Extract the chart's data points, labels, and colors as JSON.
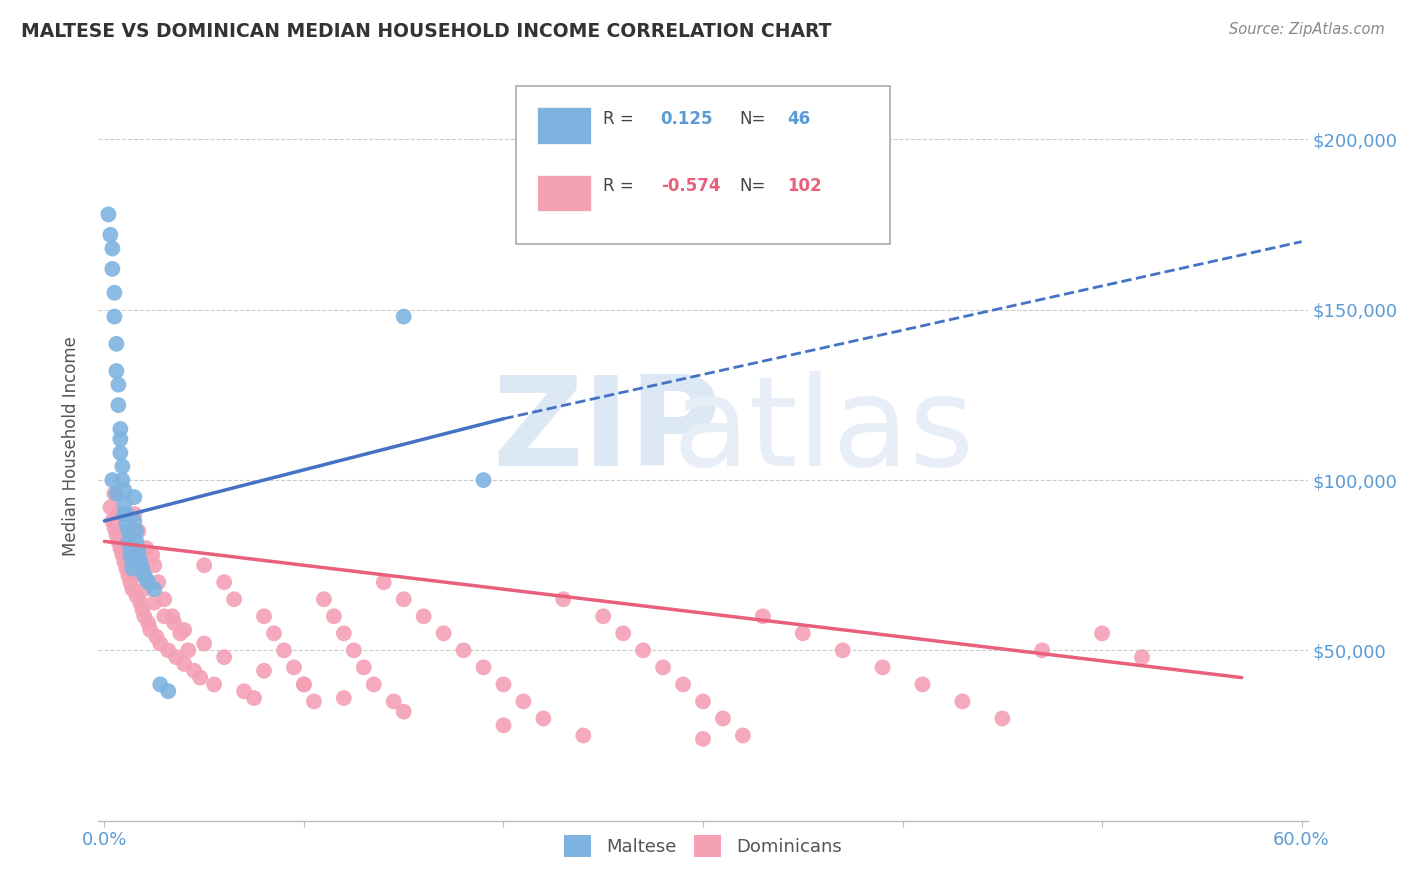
{
  "title": "MALTESE VS DOMINICAN MEDIAN HOUSEHOLD INCOME CORRELATION CHART",
  "source": "Source: ZipAtlas.com",
  "ylabel": "Median Household Income",
  "xlim": [
    -0.003,
    0.603
  ],
  "ylim": [
    0,
    220000
  ],
  "xticks": [
    0.0,
    0.6
  ],
  "xticklabels": [
    "0.0%",
    "60.0%"
  ],
  "yticks": [
    50000,
    100000,
    150000,
    200000
  ],
  "yticklabels": [
    "$50,000",
    "$100,000",
    "$150,000",
    "$200,000"
  ],
  "maltese_R": 0.125,
  "maltese_N": 46,
  "dominican_R": -0.574,
  "dominican_N": 102,
  "maltese_color": "#7eb3e0",
  "dominican_color": "#f4a0b5",
  "maltese_line_color": "#4472c4",
  "dominican_line_color": "#e8607a",
  "maltese_x": [
    0.002,
    0.003,
    0.004,
    0.004,
    0.005,
    0.005,
    0.006,
    0.006,
    0.007,
    0.007,
    0.008,
    0.008,
    0.009,
    0.009,
    0.01,
    0.01,
    0.011,
    0.011,
    0.012,
    0.012,
    0.013,
    0.013,
    0.014,
    0.014,
    0.015,
    0.015,
    0.016,
    0.016,
    0.017,
    0.017,
    0.018,
    0.018,
    0.019,
    0.019,
    0.02,
    0.021,
    0.022,
    0.025,
    0.028,
    0.032,
    0.004,
    0.006,
    0.008,
    0.15,
    0.19,
    0.01
  ],
  "maltese_y": [
    178000,
    172000,
    168000,
    162000,
    155000,
    148000,
    140000,
    132000,
    128000,
    122000,
    115000,
    108000,
    104000,
    100000,
    97000,
    93000,
    90000,
    87000,
    85000,
    82000,
    80000,
    78000,
    76000,
    74000,
    95000,
    88000,
    85000,
    82000,
    80000,
    78000,
    76000,
    75000,
    74000,
    73000,
    72000,
    71000,
    70000,
    68000,
    40000,
    38000,
    100000,
    96000,
    112000,
    148000,
    100000,
    90000
  ],
  "dominican_x": [
    0.003,
    0.004,
    0.005,
    0.006,
    0.007,
    0.008,
    0.009,
    0.01,
    0.011,
    0.012,
    0.013,
    0.014,
    0.015,
    0.016,
    0.017,
    0.018,
    0.019,
    0.02,
    0.021,
    0.022,
    0.023,
    0.024,
    0.025,
    0.026,
    0.027,
    0.028,
    0.03,
    0.032,
    0.034,
    0.036,
    0.038,
    0.04,
    0.042,
    0.045,
    0.048,
    0.05,
    0.055,
    0.06,
    0.065,
    0.07,
    0.075,
    0.08,
    0.085,
    0.09,
    0.095,
    0.1,
    0.105,
    0.11,
    0.115,
    0.12,
    0.125,
    0.13,
    0.135,
    0.14,
    0.145,
    0.15,
    0.16,
    0.17,
    0.18,
    0.19,
    0.2,
    0.21,
    0.22,
    0.23,
    0.24,
    0.25,
    0.26,
    0.27,
    0.28,
    0.29,
    0.3,
    0.31,
    0.32,
    0.33,
    0.35,
    0.37,
    0.39,
    0.41,
    0.43,
    0.45,
    0.005,
    0.007,
    0.009,
    0.011,
    0.013,
    0.015,
    0.02,
    0.025,
    0.03,
    0.035,
    0.04,
    0.05,
    0.06,
    0.08,
    0.1,
    0.12,
    0.15,
    0.2,
    0.3,
    0.5,
    0.47,
    0.52
  ],
  "dominican_y": [
    92000,
    88000,
    86000,
    84000,
    82000,
    80000,
    78000,
    76000,
    74000,
    72000,
    70000,
    68000,
    90000,
    66000,
    85000,
    64000,
    62000,
    60000,
    80000,
    58000,
    56000,
    78000,
    75000,
    54000,
    70000,
    52000,
    65000,
    50000,
    60000,
    48000,
    55000,
    46000,
    50000,
    44000,
    42000,
    75000,
    40000,
    70000,
    65000,
    38000,
    36000,
    60000,
    55000,
    50000,
    45000,
    40000,
    35000,
    65000,
    60000,
    55000,
    50000,
    45000,
    40000,
    70000,
    35000,
    65000,
    60000,
    55000,
    50000,
    45000,
    40000,
    35000,
    30000,
    65000,
    25000,
    60000,
    55000,
    50000,
    45000,
    40000,
    35000,
    30000,
    25000,
    60000,
    55000,
    50000,
    45000,
    40000,
    35000,
    30000,
    96000,
    90000,
    85000,
    80000,
    76000,
    72000,
    68000,
    64000,
    60000,
    58000,
    56000,
    52000,
    48000,
    44000,
    40000,
    36000,
    32000,
    28000,
    24000,
    55000,
    50000,
    48000
  ]
}
